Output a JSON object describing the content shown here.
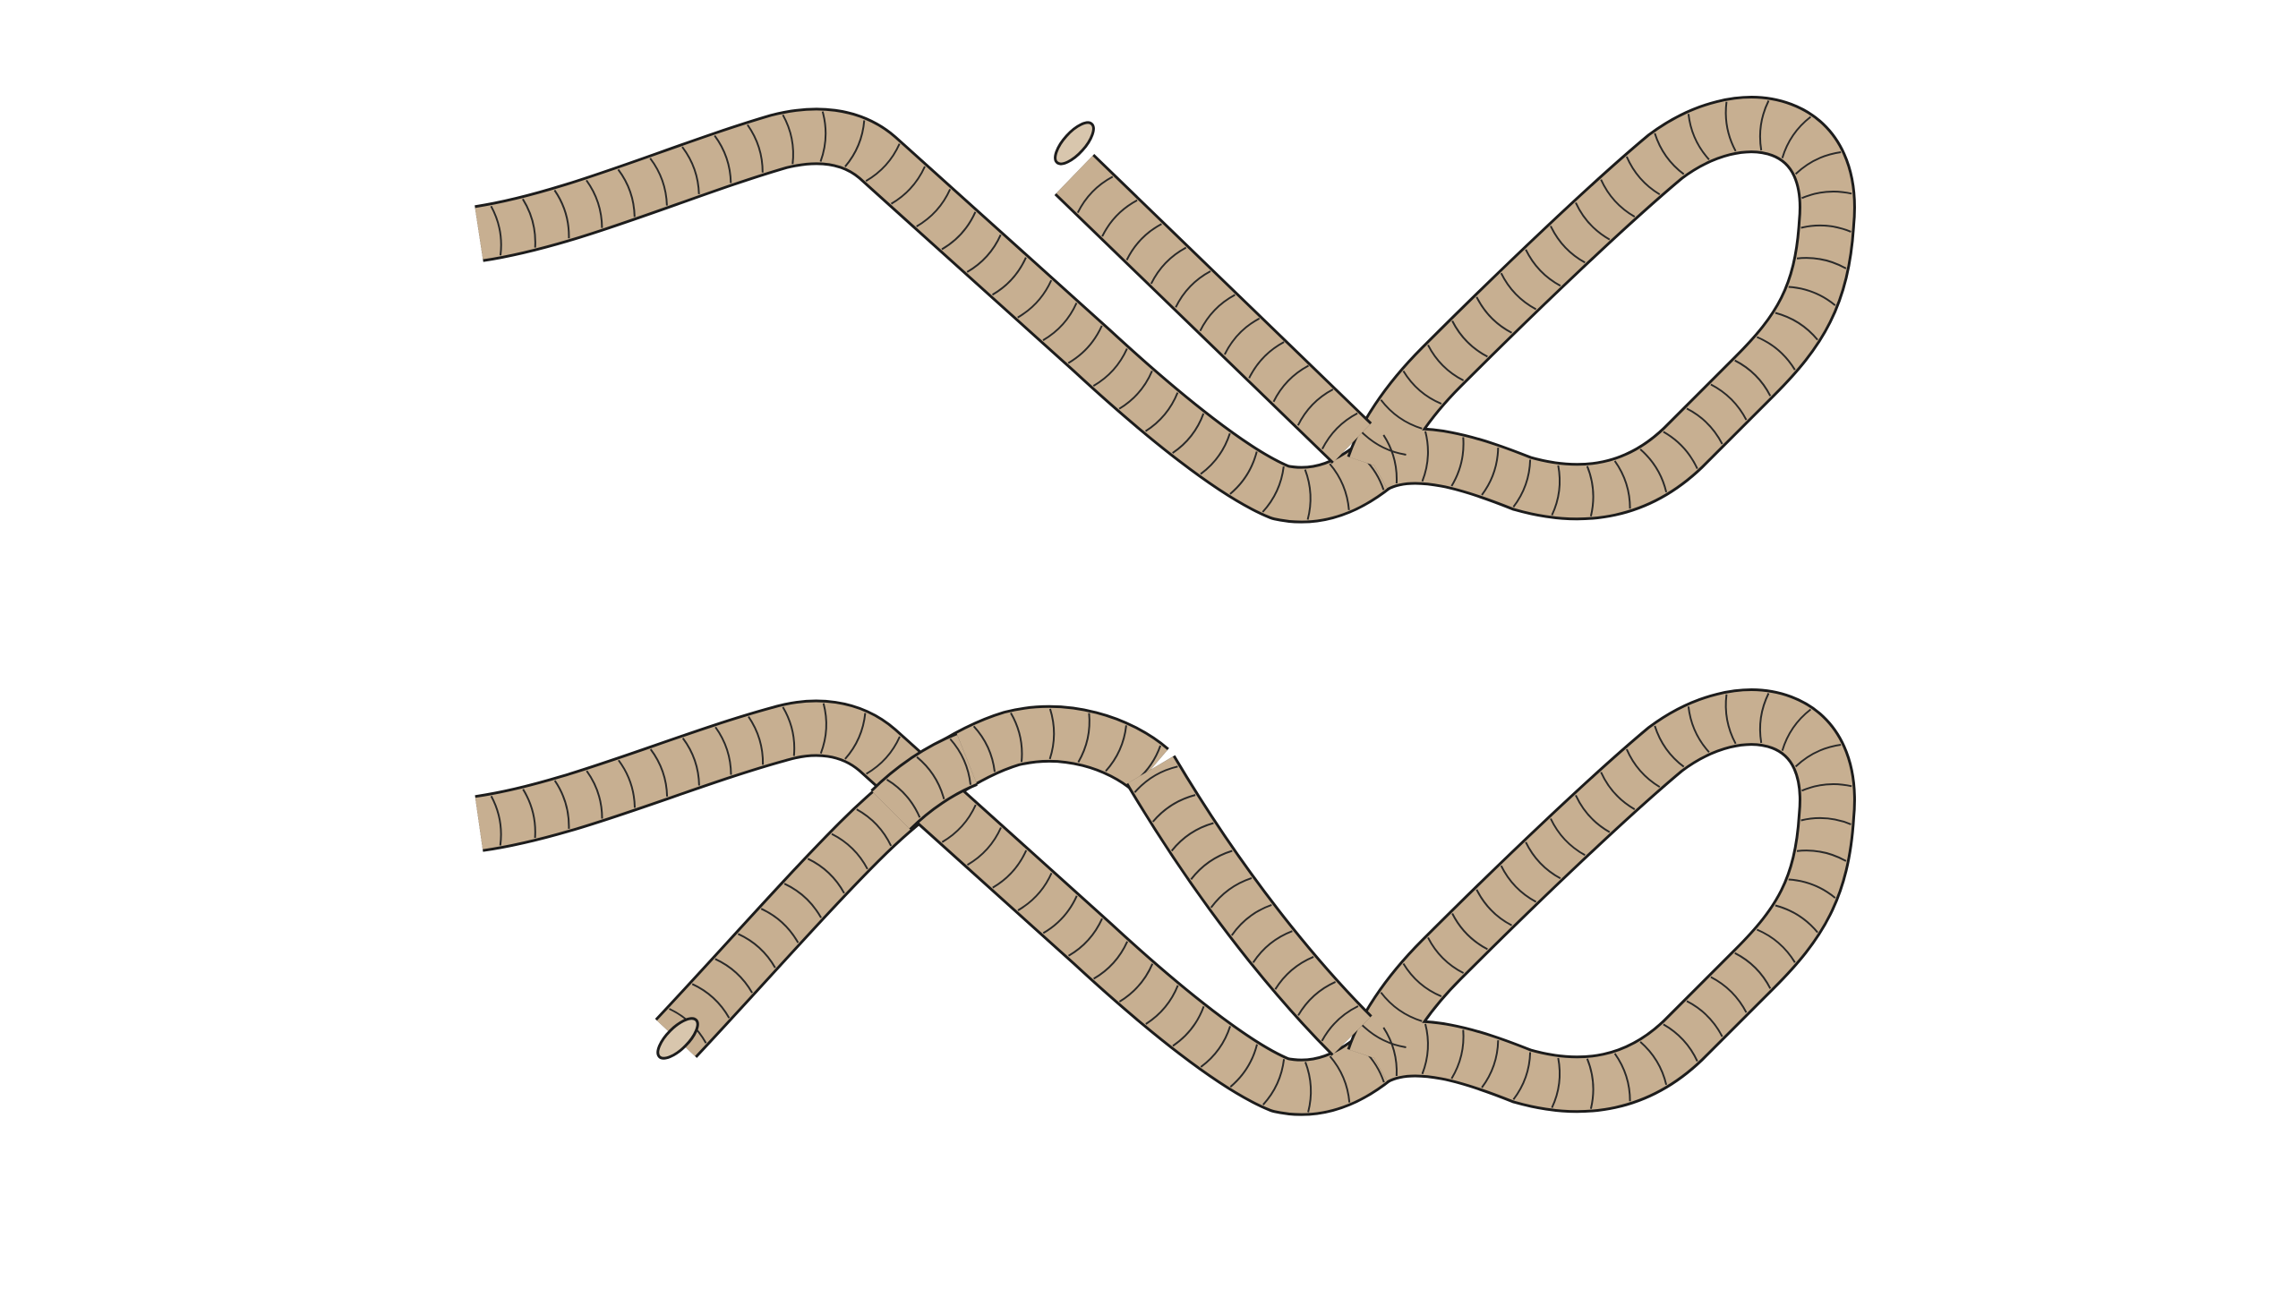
{
  "diagram": {
    "kind": "knot-tying-steps",
    "step_count": 2,
    "colors": {
      "background": "#ffffff",
      "rope_fill": "#c7af91",
      "rope_outline": "#1c1c1c",
      "rope_stripes": "#2a2a2a",
      "rope_end": "#d8c6ad"
    },
    "steps": [
      {
        "id": "step-1",
        "description_visible": ""
      },
      {
        "id": "step-2",
        "description_visible": ""
      }
    ]
  }
}
